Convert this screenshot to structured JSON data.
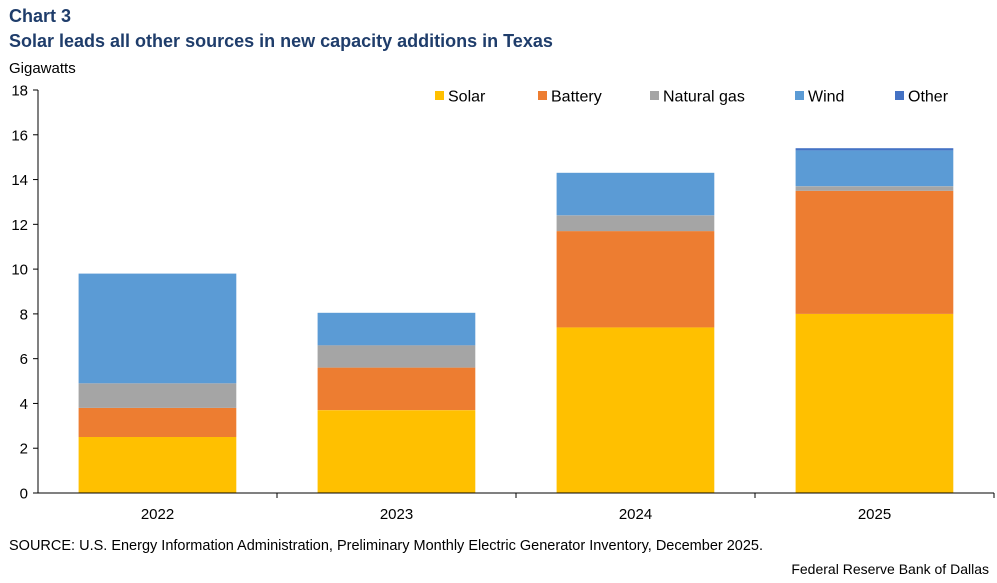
{
  "header": {
    "chart_label": "Chart 3",
    "title": "Solar leads all other sources in new capacity additions in Texas",
    "ylabel": "Gigawatts"
  },
  "footer": {
    "source": "SOURCE: U.S. Energy Information Administration, Preliminary Monthly Electric Generator Inventory, December 2025.",
    "credit": "Federal Reserve Bank of Dallas"
  },
  "chart_data": {
    "type": "bar",
    "stacked": true,
    "title": "Solar leads all other sources in new capacity additions in Texas",
    "xlabel": "",
    "ylabel": "Gigawatts",
    "categories": [
      "2022",
      "2023",
      "2024",
      "2025"
    ],
    "ylim": [
      0,
      18
    ],
    "yticks": [
      0,
      2,
      4,
      6,
      8,
      10,
      12,
      14,
      16,
      18
    ],
    "grid": false,
    "legend_position": "top",
    "series": [
      {
        "name": "Solar",
        "color": "#ffc000",
        "values": [
          2.5,
          3.7,
          7.4,
          8.0
        ]
      },
      {
        "name": "Battery",
        "color": "#ed7d31",
        "values": [
          1.3,
          1.9,
          4.3,
          5.5
        ]
      },
      {
        "name": "Natural gas",
        "color": "#a5a5a5",
        "values": [
          1.1,
          1.0,
          0.7,
          0.2
        ]
      },
      {
        "name": "Wind",
        "color": "#5b9bd5",
        "values": [
          4.9,
          1.45,
          1.9,
          1.6
        ]
      },
      {
        "name": "Other",
        "color": "#4472c4",
        "values": [
          0.0,
          0.0,
          0.0,
          0.1
        ]
      }
    ]
  }
}
